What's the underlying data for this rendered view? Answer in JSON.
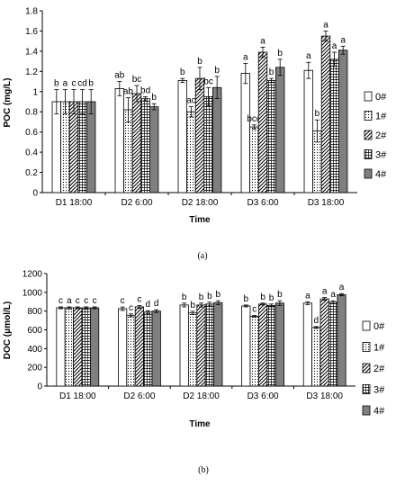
{
  "chart_data": [
    {
      "type": "bar",
      "panel_label": "(a)",
      "xlabel": "Time",
      "ylabel": "POC (mg/L)",
      "ylim": [
        0,
        1.8
      ],
      "yticks": [
        "0",
        "0.2",
        "0.4",
        "0.6",
        "0.8",
        "1",
        "1.2",
        "1.4",
        "1.6",
        "1.8"
      ],
      "ytick_values": [
        0,
        0.2,
        0.4,
        0.6,
        0.8,
        1.0,
        1.2,
        1.4,
        1.6,
        1.8
      ],
      "grid": false,
      "legend_position": "right",
      "categories": [
        "D1 18:00",
        "D2 6:00",
        "D2 18:00",
        "D3 6:00",
        "D3 18:00"
      ],
      "series": [
        {
          "name": "0#",
          "values": [
            0.9,
            1.03,
            1.11,
            1.18,
            1.21
          ],
          "errors": [
            0.12,
            0.07,
            0.02,
            0.1,
            0.08
          ],
          "labels": [
            "b",
            "ab",
            "b",
            "a",
            "a"
          ]
        },
        {
          "name": "1#",
          "values": [
            0.9,
            0.82,
            0.8,
            0.65,
            0.61
          ],
          "errors": [
            0.12,
            0.12,
            0.05,
            0.02,
            0.11
          ],
          "labels": [
            "a",
            "ab",
            "ac",
            "bcd",
            "b"
          ]
        },
        {
          "name": "2#",
          "values": [
            0.9,
            0.98,
            1.13,
            1.39,
            1.55
          ],
          "errors": [
            0.12,
            0.08,
            0.11,
            0.05,
            0.05
          ],
          "labels": [
            "c",
            "bc",
            "b",
            "a",
            "a"
          ]
        },
        {
          "name": "3#",
          "values": [
            0.9,
            0.93,
            0.95,
            1.11,
            1.32
          ],
          "errors": [
            0.12,
            0.02,
            0.09,
            0.02,
            0.07
          ],
          "labels": [
            "cd",
            "bd",
            "bc",
            "b",
            "a"
          ]
        },
        {
          "name": "4#",
          "values": [
            0.9,
            0.85,
            1.04,
            1.24,
            1.41
          ],
          "errors": [
            0.12,
            0.03,
            0.11,
            0.08,
            0.04
          ],
          "labels": [
            "b",
            "b",
            "b",
            "b",
            "a"
          ]
        }
      ]
    },
    {
      "type": "bar",
      "panel_label": "(b)",
      "xlabel": "Time",
      "ylabel": "DOC (μmol/L)",
      "ylim": [
        0,
        1200
      ],
      "yticks": [
        "0",
        "200",
        "400",
        "600",
        "800",
        "1000",
        "1200"
      ],
      "ytick_values": [
        0,
        200,
        400,
        600,
        800,
        1000,
        1200
      ],
      "grid": false,
      "legend_position": "right",
      "categories": [
        "D1 18:00",
        "D2 6:00",
        "D2 18:00",
        "D3 6:00",
        "D3 18:00"
      ],
      "series": [
        {
          "name": "0#",
          "values": [
            835,
            825,
            865,
            855,
            885
          ],
          "errors": [
            10,
            18,
            20,
            10,
            15
          ],
          "labels": [
            "c",
            "c",
            "b",
            "b",
            "a"
          ]
        },
        {
          "name": "1#",
          "values": [
            835,
            755,
            780,
            745,
            625
          ],
          "errors": [
            10,
            15,
            18,
            8,
            10
          ],
          "labels": [
            "a",
            "c",
            "b",
            "c",
            "d"
          ]
        },
        {
          "name": "2#",
          "values": [
            835,
            845,
            865,
            875,
            930
          ],
          "errors": [
            10,
            15,
            20,
            10,
            15
          ],
          "labels": [
            "c",
            "c",
            "b",
            "b",
            "a"
          ]
        },
        {
          "name": "3#",
          "values": [
            835,
            790,
            875,
            860,
            895
          ],
          "errors": [
            10,
            15,
            20,
            15,
            15
          ],
          "labels": [
            "c",
            "d",
            "b",
            "b",
            "a"
          ]
        },
        {
          "name": "4#",
          "values": [
            835,
            800,
            890,
            885,
            975
          ],
          "errors": [
            10,
            15,
            20,
            25,
            12
          ],
          "labels": [
            "c",
            "d",
            "b",
            "b",
            "a"
          ]
        }
      ]
    }
  ],
  "series_styles": [
    {
      "fill": "#ffffff",
      "pattern": "none"
    },
    {
      "fill": "#ffffff",
      "pattern": "dots"
    },
    {
      "fill": "#ffffff",
      "pattern": "diag"
    },
    {
      "fill": "#ffffff",
      "pattern": "grid"
    },
    {
      "fill": "#7f7f7f",
      "pattern": "solid"
    }
  ]
}
